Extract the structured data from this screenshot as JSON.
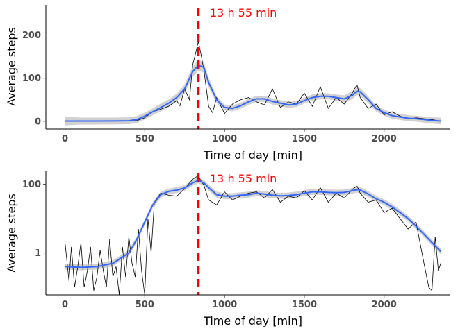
{
  "chart_data": [
    {
      "type": "line",
      "xlabel": "Time of day [min]",
      "ylabel": "Average steps",
      "xlim": [
        -120,
        2415
      ],
      "ylim": [
        -18,
        270
      ],
      "y_scale": "linear",
      "x_ticks": [
        0,
        500,
        1000,
        1500,
        2000
      ],
      "x_tick_labels": [
        "0",
        "500",
        "1000",
        "1500",
        "2000"
      ],
      "y_ticks": [
        0,
        100,
        200
      ],
      "y_tick_labels": [
        "0",
        "100",
        "200"
      ],
      "grid": false,
      "annotation": {
        "x": 835,
        "label": "13 h 55 min",
        "color": "#ff0000"
      },
      "series": [
        {
          "color": "#000000",
          "x": [
            0,
            100,
            200,
            300,
            400,
            450,
            500,
            550,
            600,
            650,
            700,
            720,
            750,
            780,
            800,
            820,
            835,
            850,
            870,
            900,
            925,
            950,
            1000,
            1050,
            1100,
            1150,
            1200,
            1250,
            1300,
            1350,
            1400,
            1450,
            1500,
            1550,
            1600,
            1650,
            1700,
            1750,
            1800,
            1830,
            1850,
            1900,
            1950,
            2000,
            2050,
            2100,
            2150,
            2200,
            2250,
            2300,
            2355
          ],
          "values": [
            1.2,
            0.3,
            0.4,
            0.6,
            0.5,
            1.5,
            8,
            22,
            28,
            35,
            48,
            36,
            75,
            50,
            130,
            160,
            185,
            160,
            120,
            35,
            20,
            55,
            18,
            40,
            50,
            55,
            45,
            38,
            75,
            32,
            45,
            40,
            65,
            35,
            80,
            30,
            55,
            40,
            65,
            85,
            55,
            30,
            40,
            15,
            22,
            12,
            5,
            8,
            6,
            4,
            0
          ]
        },
        {
          "color": "#3366ff",
          "band_color": "#bebebe",
          "x": [
            0,
            100,
            200,
            300,
            400,
            450,
            500,
            550,
            600,
            650,
            700,
            750,
            800,
            835,
            870,
            900,
            950,
            1000,
            1050,
            1100,
            1150,
            1200,
            1250,
            1300,
            1350,
            1400,
            1450,
            1500,
            1550,
            1600,
            1650,
            1700,
            1750,
            1800,
            1830,
            1850,
            1900,
            1950,
            2000,
            2050,
            2100,
            2150,
            2200,
            2250,
            2300,
            2355
          ],
          "values": [
            0.5,
            0.5,
            0.5,
            0.6,
            1.2,
            4,
            12,
            22,
            32,
            42,
            55,
            75,
            115,
            130,
            125,
            90,
            50,
            32,
            30,
            36,
            45,
            52,
            52,
            46,
            42,
            38,
            40,
            48,
            55,
            58,
            58,
            55,
            52,
            60,
            70,
            68,
            50,
            30,
            20,
            13,
            10,
            7,
            6,
            4,
            2,
            0.5
          ],
          "band": [
            10,
            8,
            8,
            8,
            8,
            8,
            8,
            8,
            9,
            9,
            9,
            10,
            12,
            13,
            12,
            11,
            8,
            7,
            7,
            7,
            7,
            7,
            7,
            7,
            7,
            7,
            7,
            7,
            7,
            7,
            7,
            7,
            8,
            9,
            9,
            9,
            8,
            7,
            7,
            7,
            7,
            7,
            7,
            7,
            7,
            8
          ]
        }
      ]
    },
    {
      "type": "line",
      "xlabel": "Time of day [min]",
      "ylabel": "Average steps",
      "xlim": [
        -120,
        2415
      ],
      "ylim": [
        0.06,
        250
      ],
      "y_scale": "log",
      "x_ticks": [
        0,
        500,
        1000,
        1500,
        2000
      ],
      "x_tick_labels": [
        "0",
        "500",
        "1000",
        "1500",
        "2000"
      ],
      "y_ticks": [
        1,
        100
      ],
      "y_tick_labels": [
        "1",
        "100"
      ],
      "grid": false,
      "annotation": {
        "x": 835,
        "label": "13 h 55 min",
        "color": "#ff0000"
      },
      "series": [
        {
          "color": "#000000",
          "x": [
            0,
            25,
            40,
            60,
            80,
            100,
            120,
            140,
            160,
            180,
            200,
            220,
            240,
            260,
            280,
            300,
            320,
            340,
            360,
            380,
            400,
            420,
            440,
            460,
            480,
            500,
            520,
            540,
            560,
            600,
            650,
            700,
            750,
            800,
            820,
            835,
            850,
            870,
            900,
            950,
            1000,
            1050,
            1100,
            1150,
            1200,
            1250,
            1300,
            1350,
            1400,
            1450,
            1500,
            1550,
            1600,
            1650,
            1700,
            1750,
            1800,
            1830,
            1850,
            1900,
            1950,
            2000,
            2050,
            2100,
            2150,
            2200,
            2250,
            2280,
            2300,
            2320,
            2340,
            2355
          ],
          "values": [
            2,
            0.15,
            1.5,
            0.1,
            0.4,
            2,
            0.1,
            0.3,
            1.5,
            0.08,
            0.2,
            1.2,
            0.3,
            0.1,
            2.5,
            0.2,
            0.4,
            0.06,
            1.5,
            0.2,
            3,
            0.5,
            0.2,
            5,
            0.3,
            0.06,
            10,
            1,
            30,
            55,
            48,
            45,
            75,
            140,
            160,
            185,
            130,
            95,
            35,
            25,
            60,
            35,
            45,
            55,
            60,
            40,
            70,
            30,
            45,
            40,
            65,
            35,
            80,
            30,
            55,
            40,
            70,
            90,
            55,
            30,
            35,
            15,
            20,
            10,
            5,
            8,
            0.5,
            0.1,
            0.08,
            3,
            0.3,
            0.5
          ]
        },
        {
          "color": "#3366ff",
          "band_color": "#bebebe",
          "x": [
            0,
            100,
            200,
            300,
            400,
            450,
            500,
            550,
            600,
            650,
            700,
            750,
            800,
            835,
            870,
            900,
            950,
            1000,
            1050,
            1100,
            1150,
            1200,
            1250,
            1300,
            1350,
            1400,
            1450,
            1500,
            1550,
            1600,
            1650,
            1700,
            1750,
            1800,
            1830,
            1850,
            1900,
            1950,
            2000,
            2050,
            2100,
            2150,
            2200,
            2250,
            2300,
            2355
          ],
          "values": [
            0.4,
            0.38,
            0.4,
            0.5,
            1,
            2.5,
            8,
            25,
            50,
            62,
            68,
            78,
            110,
            130,
            110,
            80,
            50,
            45,
            45,
            48,
            50,
            55,
            52,
            48,
            46,
            47,
            50,
            55,
            60,
            60,
            58,
            57,
            58,
            65,
            70,
            68,
            52,
            38,
            30,
            22,
            15,
            10,
            6,
            3.5,
            2,
            1.1
          ],
          "band_factor": 1.22
        }
      ]
    }
  ]
}
